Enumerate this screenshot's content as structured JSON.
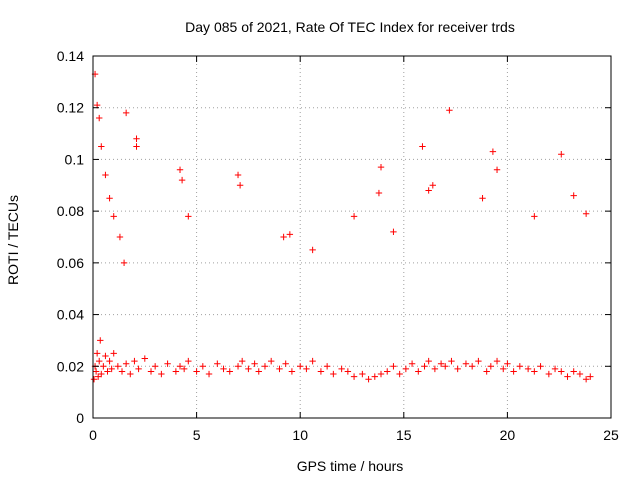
{
  "chart_data": {
    "type": "scatter",
    "title": "Day 085 of 2021, Rate Of TEC Index for receiver trds",
    "xlabel": "GPS time / hours",
    "ylabel": "ROTI / TECUs",
    "xlim": [
      0,
      25
    ],
    "ylim": [
      0,
      0.14
    ],
    "xticks": [
      0,
      5,
      10,
      15,
      20,
      25
    ],
    "yticks": [
      0,
      0.02,
      0.04,
      0.06,
      0.08,
      0.1,
      0.12,
      0.14
    ],
    "xtick_labels": [
      "0",
      "5",
      "10",
      "15",
      "20",
      "25"
    ],
    "ytick_labels": [
      "0",
      "0.02",
      "0.04",
      "0.06",
      "0.08",
      "0.1",
      "0.12",
      "0.14"
    ],
    "grid": true,
    "marker": "+",
    "color": "#ff0000",
    "series": [
      {
        "x": [
          0.05,
          0.1,
          0.15,
          0.2,
          0.25,
          0.3,
          0.35,
          0.4,
          0.5,
          0.6,
          0.7,
          0.8,
          0.9,
          1.0,
          1.2,
          1.4,
          1.6,
          1.8,
          2.0,
          2.2,
          2.5,
          2.8,
          3.0,
          3.3,
          3.6,
          4.0,
          4.2,
          4.4,
          4.6,
          5.0,
          5.3,
          5.6,
          6.0,
          6.3,
          6.6,
          7.0,
          7.2,
          7.5,
          7.8,
          8.0,
          8.3,
          8.6,
          9.0,
          9.3,
          9.6,
          10.0,
          10.3,
          10.6,
          11.0,
          11.3,
          11.6,
          12.0,
          12.3,
          12.6,
          13.0,
          13.3,
          13.6,
          13.9,
          14.2,
          14.5,
          14.8,
          15.1,
          15.4,
          15.7,
          16.0,
          16.2,
          16.5,
          16.8,
          17.0,
          17.3,
          17.6,
          18.0,
          18.3,
          18.6,
          19.0,
          19.2,
          19.5,
          19.8,
          20.0,
          20.3,
          20.6,
          21.0,
          21.3,
          21.6,
          22.0,
          22.3,
          22.6,
          22.9,
          23.2,
          23.5,
          23.8,
          24.0,
          0.1,
          0.2,
          0.3,
          0.4,
          0.6,
          0.8,
          1.0,
          1.3,
          1.6,
          2.1,
          2.1,
          4.2,
          4.3,
          7.0,
          7.1,
          9.5,
          10.6,
          12.6,
          13.8,
          13.9,
          15.9,
          16.2,
          17.2,
          19.3,
          19.5,
          22.6,
          23.8,
          1.5,
          4.6,
          9.2,
          14.5,
          16.4,
          18.8,
          21.3,
          23.2
        ],
        "y": [
          0.015,
          0.02,
          0.018,
          0.025,
          0.016,
          0.022,
          0.03,
          0.017,
          0.02,
          0.024,
          0.018,
          0.022,
          0.019,
          0.025,
          0.02,
          0.018,
          0.021,
          0.017,
          0.022,
          0.019,
          0.023,
          0.018,
          0.02,
          0.017,
          0.021,
          0.018,
          0.02,
          0.019,
          0.022,
          0.018,
          0.02,
          0.017,
          0.021,
          0.019,
          0.018,
          0.02,
          0.022,
          0.019,
          0.021,
          0.018,
          0.02,
          0.022,
          0.019,
          0.021,
          0.018,
          0.02,
          0.019,
          0.022,
          0.018,
          0.02,
          0.017,
          0.019,
          0.018,
          0.016,
          0.017,
          0.015,
          0.016,
          0.017,
          0.018,
          0.02,
          0.017,
          0.019,
          0.021,
          0.018,
          0.02,
          0.022,
          0.019,
          0.021,
          0.02,
          0.022,
          0.019,
          0.021,
          0.02,
          0.022,
          0.018,
          0.02,
          0.022,
          0.019,
          0.021,
          0.018,
          0.02,
          0.019,
          0.018,
          0.02,
          0.017,
          0.019,
          0.018,
          0.016,
          0.018,
          0.017,
          0.015,
          0.016,
          0.133,
          0.121,
          0.116,
          0.105,
          0.094,
          0.085,
          0.078,
          0.07,
          0.118,
          0.105,
          0.108,
          0.096,
          0.092,
          0.094,
          0.09,
          0.071,
          0.065,
          0.078,
          0.087,
          0.097,
          0.105,
          0.088,
          0.119,
          0.103,
          0.096,
          0.102,
          0.079,
          0.06,
          0.078,
          0.07,
          0.072,
          0.09,
          0.085,
          0.078,
          0.086
        ]
      }
    ]
  }
}
